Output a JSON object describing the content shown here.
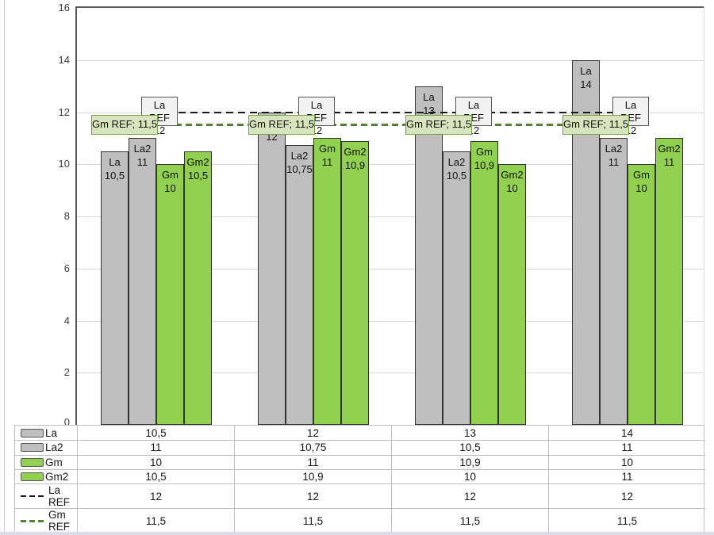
{
  "colors": {
    "bar_gray": "#bfbfbf",
    "bar_green": "#92d050",
    "bar_border": "#333333",
    "la_ref_line": "#1a1a1a",
    "gm_ref_line": "#538135",
    "gridline": "#d9d9d9",
    "axis": "#595959",
    "table_border": "#bfbfbf",
    "la_ref_box_bg": "#f2f2f2",
    "la_ref_box_border": "#595959",
    "gm_ref_box_bg": "#d7e4bd",
    "gm_ref_box_border": "#76a347"
  },
  "chart_data": {
    "type": "bar",
    "title": "",
    "groups": 4,
    "y_axis": {
      "min": 0,
      "max": 16,
      "step": 2,
      "ticks": [
        "0",
        "2",
        "4",
        "6",
        "8",
        "10",
        "12",
        "14",
        "16"
      ]
    },
    "grid": true,
    "legend_position": "data-table",
    "series": [
      {
        "name": "La",
        "kind": "bar",
        "color": "#bfbfbf",
        "values": [
          10.5,
          12,
          13,
          14
        ],
        "value_labels": [
          "10,5",
          "12",
          "13",
          "14"
        ]
      },
      {
        "name": "La2",
        "kind": "bar",
        "color": "#bfbfbf",
        "values": [
          11,
          10.75,
          10.5,
          11
        ],
        "value_labels": [
          "11",
          "10,75",
          "10,5",
          "11"
        ]
      },
      {
        "name": "Gm",
        "kind": "bar",
        "color": "#92d050",
        "values": [
          10,
          11,
          10.9,
          10
        ],
        "value_labels": [
          "10",
          "11",
          "10,9",
          "10"
        ]
      },
      {
        "name": "Gm2",
        "kind": "bar",
        "color": "#92d050",
        "values": [
          10.5,
          10.9,
          10,
          11
        ],
        "value_labels": [
          "10,5",
          "10,9",
          "10",
          "11"
        ]
      },
      {
        "name": "La REF",
        "kind": "line",
        "color": "#1a1a1a",
        "values": [
          12,
          12,
          12,
          12
        ],
        "value_labels": [
          "12",
          "12",
          "12",
          "12"
        ],
        "point_label": {
          "line1": "La REF",
          "line2": "12",
          "bg": "#f2f2f2",
          "border": "#595959"
        }
      },
      {
        "name": "Gm REF",
        "kind": "line",
        "color": "#538135",
        "values": [
          11.5,
          11.5,
          11.5,
          11.5
        ],
        "value_labels": [
          "11,5",
          "11,5",
          "11,5",
          "11,5"
        ],
        "point_label": {
          "text": "Gm REF; 11,5",
          "bg": "#d7e4bd",
          "border": "#76a347"
        }
      }
    ],
    "data_table": {
      "rows": [
        {
          "label": "La",
          "swatch": "bar-gray",
          "values": [
            "10,5",
            "12",
            "13",
            "14"
          ]
        },
        {
          "label": "La2",
          "swatch": "bar-gray",
          "values": [
            "11",
            "10,75",
            "10,5",
            "11"
          ]
        },
        {
          "label": "Gm",
          "swatch": "bar-green",
          "values": [
            "10",
            "11",
            "10,9",
            "10"
          ]
        },
        {
          "label": "Gm2",
          "swatch": "bar-green",
          "values": [
            "10,5",
            "10,9",
            "10",
            "11"
          ]
        },
        {
          "label": "La REF",
          "swatch": "line-black",
          "values": [
            "12",
            "12",
            "12",
            "12"
          ]
        },
        {
          "label": "Gm REF",
          "swatch": "line-green",
          "values": [
            "11,5",
            "11,5",
            "11,5",
            "11,5"
          ]
        }
      ]
    }
  }
}
